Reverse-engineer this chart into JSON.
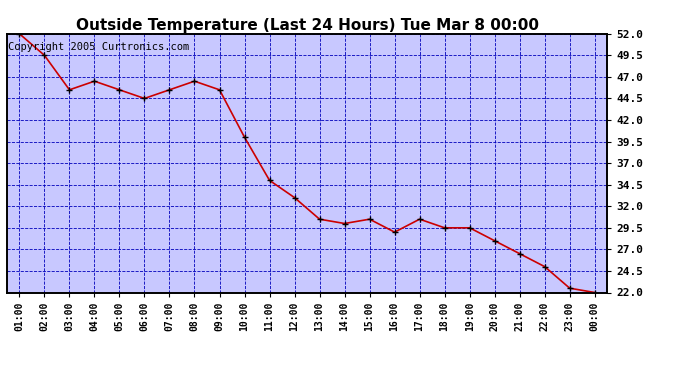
{
  "title": "Outside Temperature (Last 24 Hours) Tue Mar 8 00:00",
  "copyright_text": "Copyright 2005 Curtronics.com",
  "x_labels": [
    "01:00",
    "02:00",
    "03:00",
    "04:00",
    "05:00",
    "06:00",
    "07:00",
    "08:00",
    "09:00",
    "10:00",
    "11:00",
    "12:00",
    "13:00",
    "14:00",
    "15:00",
    "16:00",
    "17:00",
    "18:00",
    "19:00",
    "20:00",
    "21:00",
    "22:00",
    "23:00",
    "00:00"
  ],
  "y_values": [
    52.0,
    49.5,
    45.5,
    46.5,
    45.5,
    44.5,
    45.5,
    46.5,
    45.5,
    40.0,
    35.0,
    33.0,
    30.5,
    30.0,
    30.5,
    29.0,
    30.5,
    29.5,
    29.5,
    28.0,
    26.5,
    25.0,
    22.5,
    22.0
  ],
  "ylim_min": 22.0,
  "ylim_max": 52.0,
  "yticks": [
    22.0,
    24.5,
    27.0,
    29.5,
    32.0,
    34.5,
    37.0,
    39.5,
    42.0,
    44.5,
    47.0,
    49.5,
    52.0
  ],
  "line_color": "#cc0000",
  "marker_color": "#000000",
  "plot_bg_color": "#c8c8ff",
  "fig_bg_color": "#ffffff",
  "grid_color": "#0000bb",
  "title_fontsize": 11,
  "copyright_fontsize": 7.5,
  "tick_fontsize": 8,
  "xtick_fontsize": 7
}
